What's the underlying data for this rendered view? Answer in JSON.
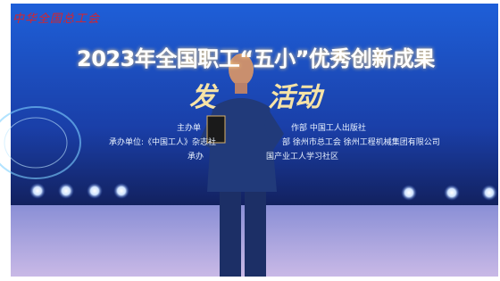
{
  "backdrop": {
    "logo": "中华全国总工会",
    "title": "2023年全国职工“五小”优秀创新成果",
    "subtitle_left": "发",
    "subtitle_right": "活动",
    "credits": [
      {
        "left": "主办单",
        "right": "作部  中国工人出版社"
      },
      {
        "left": "承办单位:《中国工人》杂志社",
        "right": "部  徐州市总工会  徐州工程机械集团有限公司"
      },
      {
        "left": "承办",
        "right": "国产业工人学习社区"
      }
    ]
  }
}
